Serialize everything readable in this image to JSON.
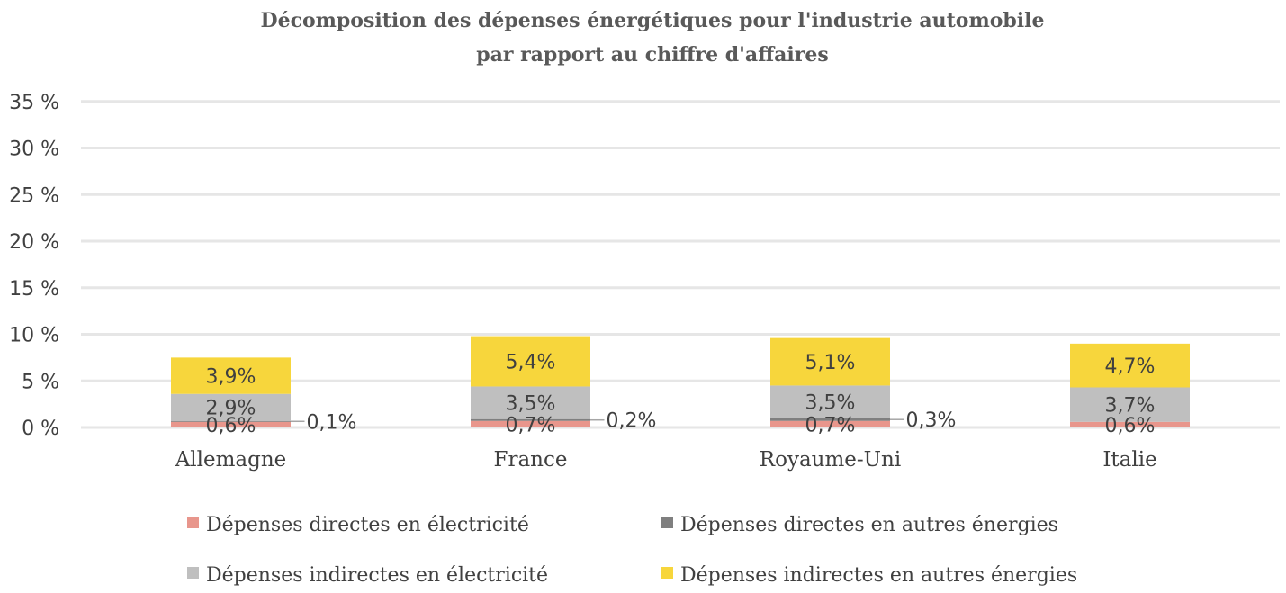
{
  "chart_data": {
    "type": "bar",
    "stacked": true,
    "title": "Décomposition des dépenses énergétiques pour l'industrie automobile",
    "subtitle": "par rapport au chiffre d'affaires",
    "categories": [
      "Allemagne",
      "France",
      "Royaume-Uni",
      "Italie"
    ],
    "ylim": [
      0,
      35
    ],
    "yticks": [
      "0 %",
      "5 %",
      "10 %",
      "15 %",
      "20 %",
      "25 %",
      "30 %",
      "35 %"
    ],
    "grid": true,
    "legend_position": "bottom",
    "series": [
      {
        "name": "Dépenses directes en électricité",
        "color": "#e8968c",
        "values": [
          0.6,
          0.7,
          0.7,
          0.6
        ],
        "labels": [
          "0,6%",
          "0,7%",
          "0,7%",
          "0,6%"
        ]
      },
      {
        "name": "Dépenses directes en autres énergies",
        "color": "#7f7f7f",
        "values": [
          0.1,
          0.2,
          0.3,
          0.0
        ],
        "labels": [
          "0,1%",
          "0,2%",
          "0,3%",
          ""
        ]
      },
      {
        "name": "Dépenses indirectes en électricité",
        "color": "#bfbfbf",
        "values": [
          2.9,
          3.5,
          3.5,
          3.7
        ],
        "labels": [
          "2,9%",
          "3,5%",
          "3,5%",
          "3,7%"
        ]
      },
      {
        "name": "Dépenses indirectes en autres énergies",
        "color": "#f7d63c",
        "values": [
          3.9,
          5.4,
          5.1,
          4.7
        ],
        "labels": [
          "3,9%",
          "5,4%",
          "5,1%",
          "4,7%"
        ]
      }
    ]
  }
}
